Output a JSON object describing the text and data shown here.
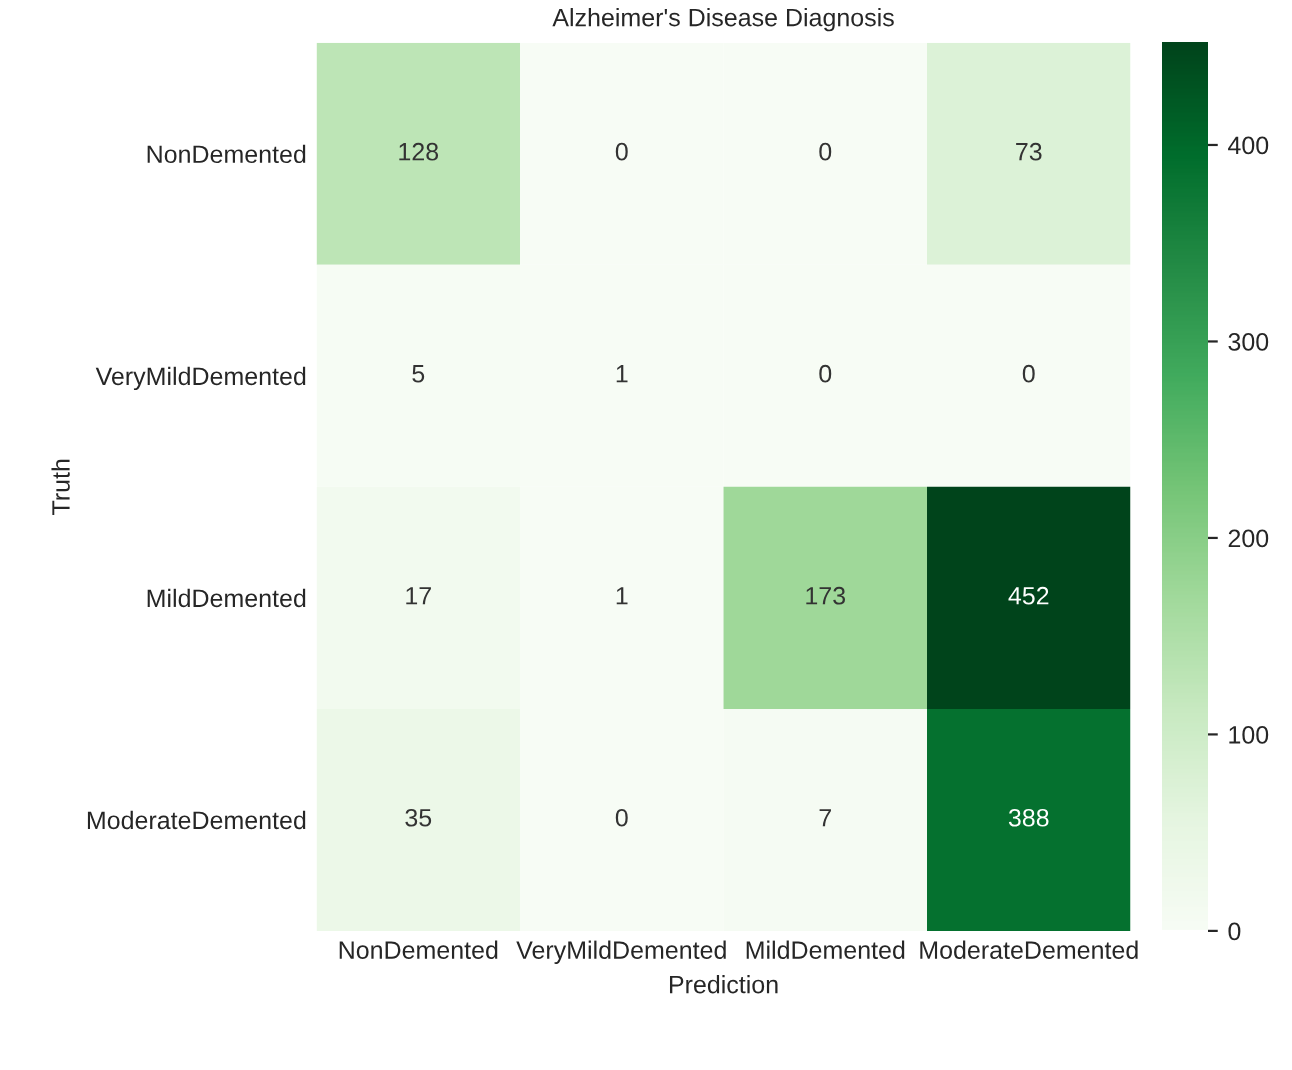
{
  "chart_data": {
    "type": "heatmap",
    "title": "Alzheimer's Disease Diagnosis",
    "xlabel": "Prediction",
    "ylabel": "Truth",
    "categories": [
      "NonDemented",
      "VeryMildDemented",
      "MildDemented",
      "ModerateDemented"
    ],
    "y_categories": [
      "NonDemented",
      "VeryMildDemented",
      "MildDemented",
      "ModerateDemented"
    ],
    "cells": [
      [
        128,
        0,
        0,
        73
      ],
      [
        5,
        1,
        0,
        0
      ],
      [
        17,
        1,
        173,
        452
      ],
      [
        35,
        0,
        7,
        388
      ]
    ],
    "data_labels": true,
    "clim": [
      0,
      452
    ],
    "cticks": [
      0,
      100,
      200,
      300,
      400
    ]
  }
}
